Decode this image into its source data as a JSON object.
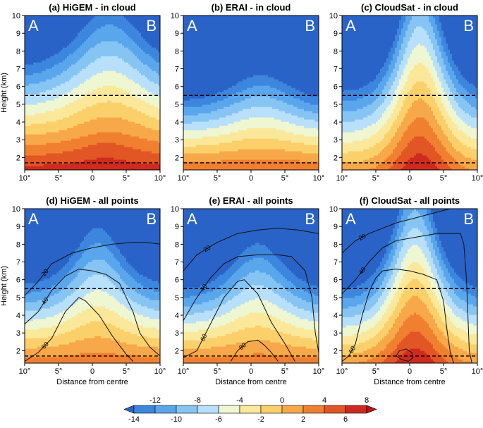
{
  "chart_data": {
    "type": "heatmap",
    "description_units": "temperature anomaly contours over height vs distance from cyclone centre",
    "panels": [
      {
        "id": "a",
        "title": "(a) HiGEM - in cloud",
        "profile": "higem_cloud",
        "contours": []
      },
      {
        "id": "b",
        "title": "(b) ERAI - in cloud",
        "profile": "erai_cloud",
        "contours": []
      },
      {
        "id": "c",
        "title": "(c) CloudSat - in cloud",
        "profile": "cloudsat_cloud",
        "contours": []
      },
      {
        "id": "d",
        "title": "(d) HiGEM - all points",
        "profile": "higem_all",
        "contours": [
          {
            "value": 20,
            "label": "20",
            "points": [
              [
                -10,
                5.1
              ],
              [
                -8,
                5.9
              ],
              [
                -6,
                6.9
              ],
              [
                -3,
                7.5
              ],
              [
                0,
                7.8
              ],
              [
                3,
                8.0
              ],
              [
                6,
                8.1
              ],
              [
                8,
                8.1
              ],
              [
                10,
                8.0
              ]
            ]
          },
          {
            "value": 40,
            "label": "40",
            "points": [
              [
                -10,
                3.5
              ],
              [
                -8,
                4.2
              ],
              [
                -6,
                5.4
              ],
              [
                -4,
                6.2
              ],
              [
                -2,
                6.6
              ],
              [
                0,
                6.5
              ],
              [
                2,
                6.3
              ],
              [
                4,
                5.8
              ],
              [
                6,
                4.2
              ],
              [
                7,
                3.0
              ],
              [
                8.5,
                2.2
              ],
              [
                10,
                1.7
              ]
            ]
          },
          {
            "value": 60,
            "label": "60",
            "points": [
              [
                -10,
                1.4
              ],
              [
                -8,
                1.9
              ],
              [
                -6,
                2.7
              ],
              [
                -4,
                4.2
              ],
              [
                -2,
                5.0
              ],
              [
                -1,
                4.8
              ],
              [
                1,
                4.0
              ],
              [
                3,
                2.8
              ],
              [
                5,
                1.8
              ],
              [
                6,
                1.4
              ]
            ]
          }
        ]
      },
      {
        "id": "e",
        "title": "(e) ERAI - all points",
        "profile": "erai_all",
        "contours": [
          {
            "value": 20,
            "label": "20",
            "points": [
              [
                -10,
                6.5
              ],
              [
                -8,
                7.4
              ],
              [
                -5,
                8.1
              ],
              [
                -2,
                8.6
              ],
              [
                1,
                8.8
              ],
              [
                4,
                8.9
              ],
              [
                7,
                8.8
              ],
              [
                10,
                8.6
              ]
            ]
          },
          {
            "value": 40,
            "label": "40",
            "points": [
              [
                -10,
                3.7
              ],
              [
                -8,
                5.0
              ],
              [
                -6,
                6.1
              ],
              [
                -4,
                6.9
              ],
              [
                -2,
                7.3
              ],
              [
                1,
                7.4
              ],
              [
                4,
                7.4
              ],
              [
                6,
                7.3
              ],
              [
                8,
                6.5
              ],
              [
                9,
                5.0
              ],
              [
                9.5,
                3.0
              ],
              [
                10,
                1.9
              ]
            ]
          },
          {
            "value": 60,
            "label": "60",
            "points": [
              [
                -10,
                1.6
              ],
              [
                -8,
                2.0
              ],
              [
                -6,
                3.5
              ],
              [
                -4,
                5.0
              ],
              [
                -2,
                5.9
              ],
              [
                -1,
                6.0
              ],
              [
                1,
                5.2
              ],
              [
                3,
                3.6
              ],
              [
                5,
                2.4
              ],
              [
                6.5,
                1.4
              ]
            ]
          },
          {
            "value": 80,
            "label": "80",
            "points": [
              [
                -3,
                1.4
              ],
              [
                -2,
                2.0
              ],
              [
                -0.5,
                2.5
              ],
              [
                1,
                2.6
              ],
              [
                2,
                2.3
              ],
              [
                3,
                1.9
              ],
              [
                4,
                1.4
              ]
            ]
          }
        ]
      },
      {
        "id": "f",
        "title": "(f) CloudSat - all points",
        "profile": "cloudsat_all",
        "contours": [
          {
            "value": 20,
            "label": "20",
            "points": [
              [
                -10,
                7.5
              ],
              [
                -8,
                8.2
              ],
              [
                -6,
                8.6
              ],
              [
                -4,
                8.9
              ],
              [
                -2,
                9.2
              ],
              [
                1,
                9.5
              ],
              [
                4,
                9.8
              ],
              [
                6,
                10
              ]
            ]
          },
          {
            "value": 40,
            "label": "40",
            "points": [
              [
                -10,
                5.2
              ],
              [
                -8,
                6.0
              ],
              [
                -6,
                7.0
              ],
              [
                -4,
                7.8
              ],
              [
                -2,
                8.2
              ],
              [
                1,
                8.4
              ],
              [
                4,
                8.6
              ],
              [
                6,
                8.6
              ],
              [
                7.5,
                8.6
              ],
              [
                8,
                8.0
              ],
              [
                8.4,
                6.0
              ],
              [
                8.6,
                4.0
              ],
              [
                8.8,
                2.0
              ],
              [
                9.2,
                1.3
              ]
            ]
          },
          {
            "value": 60,
            "label": "60",
            "points": [
              [
                -10,
                1.4
              ],
              [
                -9,
                1.7
              ],
              [
                -8,
                2.4
              ],
              [
                -7,
                4.0
              ],
              [
                -6,
                5.3
              ],
              [
                -5,
                6.1
              ],
              [
                -4,
                6.5
              ],
              [
                -2,
                6.6
              ],
              [
                0,
                6.5
              ],
              [
                2,
                6.3
              ],
              [
                4,
                6.0
              ],
              [
                5,
                4.8
              ],
              [
                5.5,
                3.2
              ],
              [
                6,
                1.9
              ],
              [
                6.5,
                1.3
              ]
            ]
          },
          {
            "value": 80,
            "label": "",
            "points": [
              [
                -2,
                1.7
              ],
              [
                -1.5,
                2.0
              ],
              [
                -0.5,
                2.1
              ],
              [
                0.3,
                1.9
              ],
              [
                0.5,
                1.6
              ],
              [
                -0.2,
                1.4
              ],
              [
                -1.2,
                1.5
              ],
              [
                -2,
                1.7
              ]
            ]
          }
        ]
      }
    ],
    "x_axis": {
      "label": "Distance from centre",
      "range": [
        -10,
        10
      ],
      "ticks": [
        -10,
        -5,
        0,
        5,
        10
      ],
      "tick_labels": [
        "10°",
        "5°",
        "0",
        "5°",
        "10°"
      ]
    },
    "y_axis": {
      "label": "Height (km)",
      "range": [
        1.3,
        10
      ],
      "ticks": [
        2,
        3,
        4,
        5,
        6,
        7,
        8,
        9,
        10
      ],
      "tick_labels": [
        "2",
        "3",
        "4",
        "5",
        "6",
        "7",
        "8",
        "9",
        "10"
      ]
    },
    "dashed_levels_km": [
      5.5,
      1.7
    ],
    "corner_labels": {
      "left": "A",
      "right": "B"
    },
    "colorbar": {
      "levels_top": [
        "-12",
        "-8",
        "-4",
        "0",
        "4",
        "8"
      ],
      "levels_bottom": [
        "-14",
        "-10",
        "-6",
        "-2",
        "2",
        "6"
      ],
      "colors": [
        "#2a63c7",
        "#3c86de",
        "#5aa6ec",
        "#86c4f4",
        "#b8e0fa",
        "#eef7d2",
        "#fbe89a",
        "#fbd06b",
        "#f7a848",
        "#f08030",
        "#e25525",
        "#cf2a1f",
        "#b8141b"
      ]
    }
  }
}
